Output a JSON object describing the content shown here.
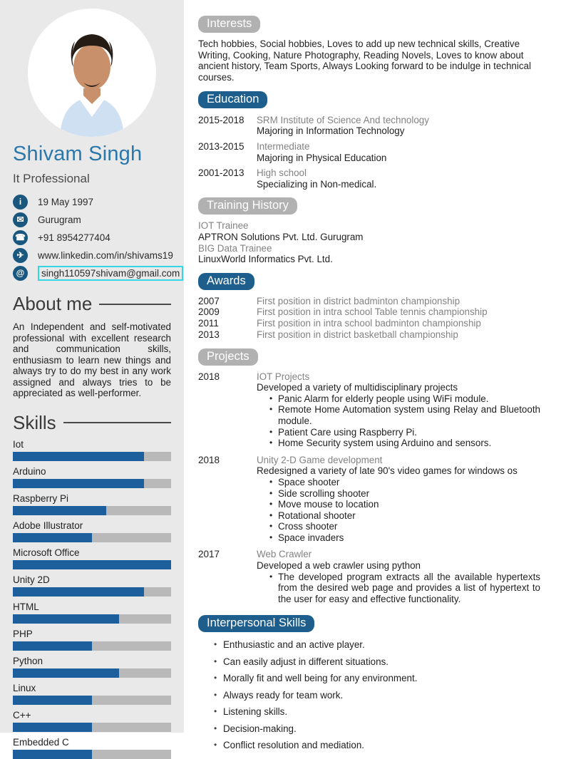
{
  "colors": {
    "accent_pill_blue": "#1d5e8c",
    "bar_blue": "#1c5f9c",
    "pill_gray": "#b1b1b1",
    "name_blue": "#2a77ab",
    "icon_circle_blue": "#19577f",
    "email_highlight_border": "#33d6e6",
    "sidebar_bg": "#e9e9e9"
  },
  "sidebar": {
    "name": "Shivam Singh",
    "title": "It Professional",
    "contact": [
      {
        "icon": "info-icon",
        "glyph": "i",
        "text": "19 May 1997",
        "highlighted": false
      },
      {
        "icon": "mail-icon",
        "glyph": "✉",
        "text": "Gurugram",
        "highlighted": false
      },
      {
        "icon": "phone-icon",
        "glyph": "☎",
        "text": "+91 8954277404",
        "highlighted": false
      },
      {
        "icon": "globe-icon",
        "glyph": "✈",
        "text": "www.linkedin.com/in/shivams19",
        "highlighted": false
      },
      {
        "icon": "at-icon",
        "glyph": "@",
        "text": "singh110597shivam@gmail.com",
        "highlighted": true
      }
    ],
    "about": {
      "heading": "About me",
      "text": "An Independent and self-motivated professional with excellent research and communication skills, enthusiasm to learn new things and always try to do my best in any work assigned and always tries to be appreciated as well-performer."
    },
    "skills": {
      "heading": "Skills",
      "items": [
        {
          "label": "Iot",
          "percent": 83
        },
        {
          "label": "Arduino",
          "percent": 83
        },
        {
          "label": "Raspberry Pi",
          "percent": 59
        },
        {
          "label": "Adobe Illustrator",
          "percent": 50
        },
        {
          "label": "Microsoft Office",
          "percent": 100
        },
        {
          "label": "Unity 2D",
          "percent": 83
        },
        {
          "label": "HTML",
          "percent": 67
        },
        {
          "label": "PHP",
          "percent": 50
        },
        {
          "label": "Python",
          "percent": 67
        },
        {
          "label": "Linux",
          "percent": 50
        },
        {
          "label": "C++",
          "percent": 50
        },
        {
          "label": "Embedded C",
          "percent": 50
        }
      ]
    }
  },
  "main": {
    "interests": {
      "heading": "Interests",
      "text": "Tech hobbies, Social hobbies, Loves to add up new technical skills, Creative Writing, Cooking, Nature Photography, Reading Novels, Loves to know about ancient history, Team Sports, Always Looking forward to be indulge in technical courses."
    },
    "education": {
      "heading": "Education",
      "rows": [
        {
          "period": "2015-2018",
          "line1": "SRM Institute of Science And technology",
          "line2": "Majoring in Information Technology"
        },
        {
          "period": "2013-2015",
          "line1": "Intermediate",
          "line2": "Majoring in Physical Education"
        },
        {
          "period": "2001-2013",
          "line1": "High school",
          "line2": "Specializing in Non-medical."
        }
      ]
    },
    "training": {
      "heading": "Training History",
      "lines": [
        {
          "text": "IOT Trainee",
          "muted": true
        },
        {
          "text": "APTRON Solutions Pvt. Ltd. Gurugram",
          "muted": false
        },
        {
          "text": "BIG Data Trainee",
          "muted": true
        },
        {
          "text": "LinuxWorld Informatics Pvt. Ltd.",
          "muted": false
        }
      ]
    },
    "awards": {
      "heading": "Awards",
      "rows": [
        {
          "year": "2007",
          "text": "First position in district badminton championship"
        },
        {
          "year": "2009",
          "text": "First position in intra school Table tennis championship"
        },
        {
          "year": "2011",
          "text": "First position in intra school badminton championship"
        },
        {
          "year": "2013",
          "text": "First position in district basketball championship"
        }
      ]
    },
    "projects": {
      "heading": "Projects",
      "entries": [
        {
          "year": "2018",
          "title": "IOT Projects",
          "description": "Developed a variety of multidisciplinary projects",
          "bullets": [
            "Panic Alarm for elderly people using WiFi module.",
            "Remote Home Automation system using Relay and Bluetooth module.",
            "Patient Care using Raspberry Pi.",
            "Home Security system using Arduino and sensors."
          ]
        },
        {
          "year": "2018",
          "title": "Unity 2-D Game development",
          "description": "Redesigned a variety of late 90's video games for windows os",
          "bullets": [
            "Space shooter",
            "Side scrolling shooter",
            "Move mouse to location",
            "Rotational shooter",
            "Cross shooter",
            "Space invaders"
          ]
        },
        {
          "year": "2017",
          "title": "Web Crawler",
          "description": "Developed a web crawler using python",
          "bullets": [
            "The developed program extracts all the available hypertexts from the desired web page and provides a list of hypertext to the user for easy and effective functionality."
          ]
        }
      ]
    },
    "interpersonal": {
      "heading": "Interpersonal Skills",
      "bullets": [
        "Enthusiastic and an active player.",
        "Can easily adjust in different situations.",
        "Morally fit and well being for any environment.",
        "Always ready for team work.",
        "Listening skills.",
        "Decision-making.",
        "Conflict resolution and mediation."
      ]
    }
  }
}
